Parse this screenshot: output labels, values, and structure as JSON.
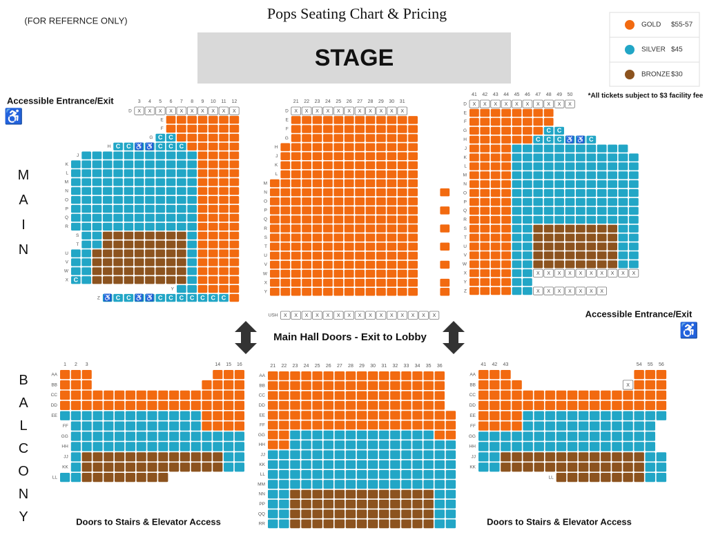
{
  "note": "(FOR REFERNCE ONLY)",
  "title": "Pops Seating Chart & Pricing",
  "stage": "STAGE",
  "legend": [
    {
      "name": "GOLD",
      "price": "$55-57",
      "color": "#f26a10"
    },
    {
      "name": "SILVER",
      "price": "$45",
      "color": "#22a6c6"
    },
    {
      "name": "BRONZE",
      "price": "$30",
      "color": "#8c531f"
    }
  ],
  "fee_note": "*All tickets subject to $3 facility fee",
  "accessible_entrances": [
    "Accessible Entrance/Exit",
    "Accessible Entrance/Exit"
  ],
  "seat_marks": {
    "companion": "C",
    "unavailable": "X",
    "wheelchair": "♿"
  },
  "levels": {
    "main": "MAIN",
    "balcony": "BALCONY"
  },
  "main_doors": "Main Hall Doors - Exit to Lobby",
  "balcony_doors": [
    "Doors to Stairs & Elevator Access",
    "Doors to Stairs & Elevator Access"
  ],
  "main": {
    "left": {
      "seat_numbers": [
        3,
        4,
        5,
        6,
        7,
        8,
        9,
        10,
        11,
        12
      ],
      "rows": [
        "D",
        "E",
        "F",
        "G",
        "H",
        "J",
        "K",
        "L",
        "M",
        "N",
        "O",
        "P",
        "Q",
        "R",
        "S",
        "T",
        "U",
        "V",
        "W",
        "X",
        "Y",
        "Z"
      ]
    },
    "center": {
      "seat_numbers": [
        21,
        22,
        23,
        24,
        25,
        26,
        27,
        28,
        29,
        30,
        31
      ],
      "rows": [
        "D",
        "E",
        "F",
        "G",
        "H",
        "J",
        "K",
        "L",
        "M",
        "N",
        "O",
        "P",
        "Q",
        "R",
        "S",
        "T",
        "U",
        "V",
        "W",
        "X",
        "Y"
      ]
    },
    "usher": {
      "rows": [
        "USH"
      ]
    },
    "right": {
      "seat_numbers": [
        41,
        42,
        43,
        44,
        45,
        46,
        47,
        48,
        49,
        50
      ],
      "rows": [
        "D",
        "E",
        "F",
        "G",
        "H",
        "J",
        "K",
        "L",
        "M",
        "N",
        "O",
        "P",
        "Q",
        "R",
        "S",
        "T",
        "U",
        "V",
        "W",
        "X",
        "Y",
        "Z"
      ]
    }
  },
  "balcony": {
    "left": {
      "seat_numbers": [
        1,
        2,
        3,
        14,
        15,
        16
      ],
      "rows": [
        "AA",
        "BB",
        "CC",
        "DD",
        "EE",
        "FF",
        "GG",
        "HH",
        "JJ",
        "KK",
        "LL"
      ]
    },
    "center": {
      "seat_numbers": [
        21,
        22,
        23,
        24,
        25,
        26,
        27,
        28,
        29,
        30,
        31,
        32,
        33,
        34,
        35,
        36
      ],
      "rows": [
        "AA",
        "BB",
        "CC",
        "DD",
        "EE",
        "FF",
        "GG",
        "HH",
        "JJ",
        "KK",
        "LL",
        "MM",
        "NN",
        "PP",
        "QQ",
        "RR"
      ]
    },
    "right": {
      "seat_numbers": [
        41,
        42,
        43,
        54,
        55,
        56
      ],
      "rows": [
        "AA",
        "BB",
        "CC",
        "DD",
        "EE",
        "FF",
        "GG",
        "HH",
        "JJ",
        "KK",
        "LL"
      ]
    }
  }
}
